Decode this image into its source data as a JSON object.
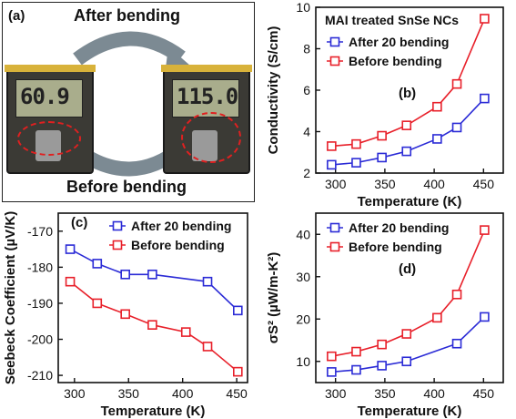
{
  "panel_a": {
    "letter": "(a)",
    "top_label": "After bending",
    "bottom_label": "Before bending",
    "meter_left": "60.9",
    "meter_right": "115.0"
  },
  "colors": {
    "blue": "#2b2bd6",
    "red": "#e8202a",
    "arrow": "#7c8a93"
  },
  "chart_data": [
    {
      "panel": "(b)",
      "type": "line",
      "title": "MAI treated SnSe NCs",
      "xlabel": "Temperature (K)",
      "ylabel": "Conductivity (S/cm)",
      "xlim": [
        280,
        470
      ],
      "ylim": [
        2,
        10
      ],
      "xticks": [
        300,
        350,
        400,
        450
      ],
      "yticks": [
        2,
        4,
        6,
        8,
        10
      ],
      "legend_position": "top-left",
      "series": [
        {
          "name": "After 20 bending",
          "color": "#2b2bd6",
          "x": [
            296,
            321,
            347,
            372,
            403,
            423,
            451
          ],
          "y": [
            2.4,
            2.5,
            2.75,
            3.05,
            3.65,
            4.2,
            5.6
          ]
        },
        {
          "name": "Before bending",
          "color": "#e8202a",
          "x": [
            296,
            321,
            347,
            372,
            403,
            423,
            451
          ],
          "y": [
            3.3,
            3.4,
            3.8,
            4.3,
            5.2,
            6.3,
            9.45
          ]
        }
      ]
    },
    {
      "panel": "(c)",
      "type": "line",
      "title": "",
      "xlabel": "Temperature (K)",
      "ylabel": "Seebeck Coefficient (µV/K)",
      "xlim": [
        285,
        460
      ],
      "ylim": [
        -212,
        -165
      ],
      "xticks": [
        300,
        350,
        400,
        450
      ],
      "yticks": [
        -210,
        -200,
        -190,
        -180,
        -170
      ],
      "legend_position": "top-left",
      "series": [
        {
          "name": "After 20 bending",
          "color": "#2b2bd6",
          "x": [
            296,
            321,
            347,
            372,
            423,
            451
          ],
          "y": [
            -175,
            -179,
            -182,
            -182,
            -184,
            -192
          ]
        },
        {
          "name": "Before bending",
          "color": "#e8202a",
          "x": [
            296,
            321,
            347,
            372,
            403,
            423,
            451
          ],
          "y": [
            -184,
            -190,
            -193,
            -196,
            -198,
            -202,
            -209
          ]
        }
      ]
    },
    {
      "panel": "(d)",
      "type": "line",
      "title": "",
      "xlabel": "Temperature (K)",
      "ylabel": "σS² (µW/m-K²)",
      "xlim": [
        280,
        470
      ],
      "ylim": [
        5,
        45
      ],
      "xticks": [
        300,
        350,
        400,
        450
      ],
      "yticks": [
        10,
        20,
        30,
        40
      ],
      "legend_position": "top-left",
      "series": [
        {
          "name": "After 20 bending",
          "color": "#2b2bd6",
          "x": [
            296,
            321,
            347,
            372,
            423,
            451
          ],
          "y": [
            7.5,
            8.0,
            9.0,
            10.0,
            14.2,
            20.5
          ]
        },
        {
          "name": "Before bending",
          "color": "#e8202a",
          "x": [
            296,
            321,
            347,
            372,
            403,
            423,
            451
          ],
          "y": [
            11.2,
            12.3,
            14.0,
            16.5,
            20.3,
            25.8,
            41.0
          ]
        }
      ]
    }
  ]
}
